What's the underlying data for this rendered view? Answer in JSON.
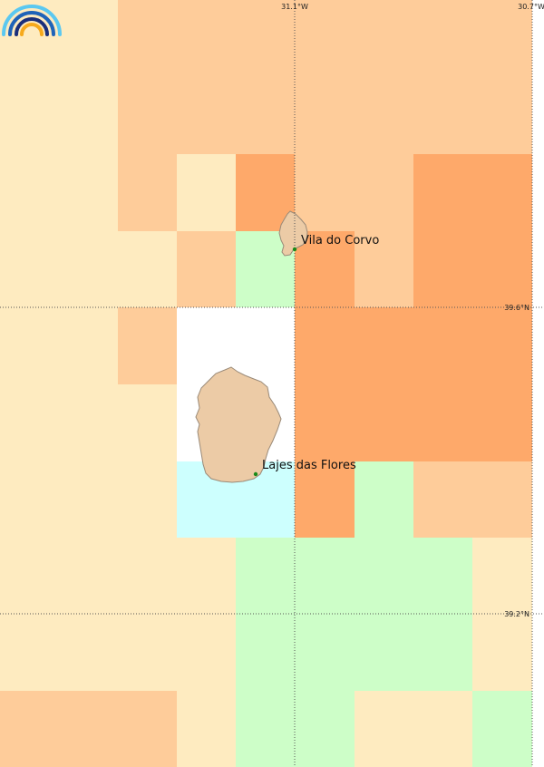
{
  "colors": {
    "class_1": "#feebc0",
    "class_2": "#fecc9a",
    "class_3": "#fea96a",
    "class_4": "#cdfec8",
    "class_5": "#cdfffe",
    "class_6": "#ffffff",
    "land": "#eccba6",
    "place_marker": "#1a8a1a"
  },
  "graticule": {
    "longitudes": [
      "31.1°W",
      "30.7°W"
    ],
    "latitudes": [
      "39.6°N",
      "39.2°N"
    ]
  },
  "places": [
    {
      "name": "Vila do Corvo"
    },
    {
      "name": "Lajes das Flores"
    }
  ],
  "islands": [
    "corvo",
    "flores"
  ],
  "logo": {
    "icon": "rainbow-arcs-icon"
  }
}
